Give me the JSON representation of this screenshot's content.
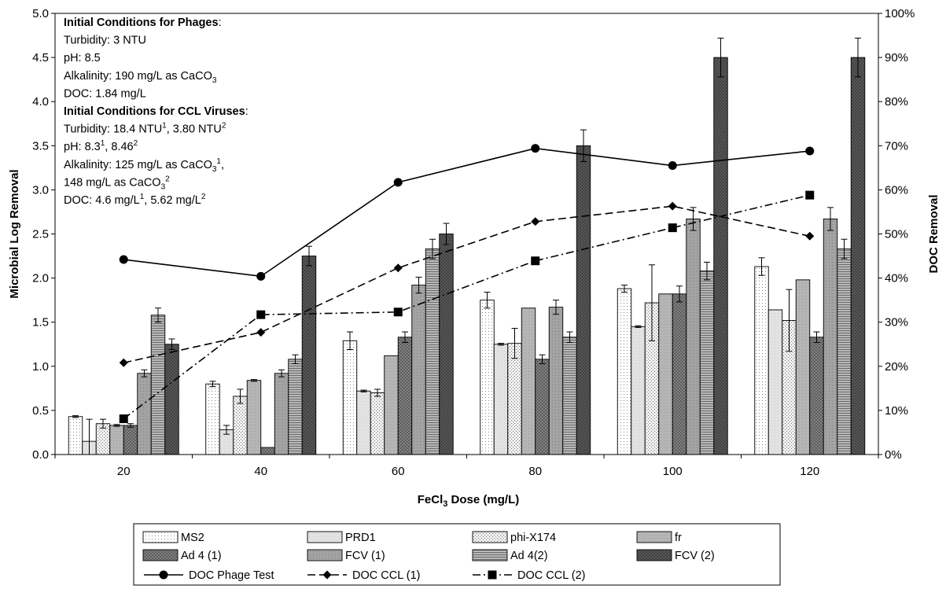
{
  "chart_data": {
    "type": "bar",
    "categories": [
      "20",
      "40",
      "60",
      "80",
      "100",
      "120"
    ],
    "xlabel": "FeCl3 Dose (mg/L)",
    "ylabel": "Microbial Log Removal",
    "y2label": "DOC Removal",
    "ylim": [
      0,
      5
    ],
    "y2lim": [
      0,
      100
    ],
    "y_ticks": [
      "0.0",
      "0.5",
      "1.0",
      "1.5",
      "2.0",
      "2.5",
      "3.0",
      "3.5",
      "4.0",
      "4.5",
      "5.0"
    ],
    "y2_ticks": [
      "0%",
      "10%",
      "20%",
      "30%",
      "40%",
      "50%",
      "60%",
      "70%",
      "80%",
      "90%",
      "100%"
    ],
    "series": [
      {
        "name": "MS2",
        "values": [
          0.43,
          0.8,
          1.29,
          1.75,
          1.88,
          2.13
        ],
        "errors": [
          0.01,
          0.03,
          0.1,
          0.09,
          0.04,
          0.1
        ],
        "fill": "dots-fine"
      },
      {
        "name": "PRD1",
        "values": [
          0.15,
          0.28,
          0.72,
          1.25,
          1.45,
          1.64
        ],
        "errors": [
          0.25,
          0.05,
          0.01,
          0.01,
          0.01,
          0.0
        ],
        "fill": "light"
      },
      {
        "name": "phi-X174",
        "values": [
          0.35,
          0.66,
          0.7,
          1.26,
          1.72,
          1.52
        ],
        "errors": [
          0.05,
          0.08,
          0.04,
          0.17,
          0.43,
          0.35
        ],
        "fill": "dots"
      },
      {
        "name": "fr",
        "values": [
          0.33,
          0.84,
          1.12,
          1.66,
          1.82,
          1.98
        ],
        "errors": [
          0.01,
          0.01,
          0.0,
          0.0,
          0.0,
          0.0
        ],
        "fill": "mid"
      },
      {
        "name": "Ad 4 (1)",
        "values": [
          0.33,
          0.08,
          1.33,
          1.08,
          1.82,
          1.33
        ],
        "errors": [
          0.02,
          0.0,
          0.06,
          0.05,
          0.09,
          0.06
        ],
        "fill": "dark-cross"
      },
      {
        "name": "FCV (1)",
        "values": [
          0.92,
          0.92,
          1.92,
          1.67,
          2.67,
          2.67
        ],
        "errors": [
          0.04,
          0.04,
          0.09,
          0.08,
          0.13,
          0.13
        ],
        "fill": "mid-dark"
      },
      {
        "name": "Ad 4(2)",
        "values": [
          1.58,
          1.08,
          2.33,
          1.33,
          2.08,
          2.33
        ],
        "errors": [
          0.08,
          0.05,
          0.11,
          0.06,
          0.1,
          0.11
        ],
        "fill": "hatch-dark"
      },
      {
        "name": "FCV (2)",
        "values": [
          1.25,
          2.25,
          2.5,
          3.5,
          4.5,
          4.5
        ],
        "errors": [
          0.06,
          0.11,
          0.12,
          0.18,
          0.22,
          0.22
        ],
        "fill": "darkest"
      }
    ],
    "lines": [
      {
        "name": "DOC Phage Test",
        "x": [
          20,
          40,
          60,
          80,
          100,
          120
        ],
        "values": [
          44.2,
          40.4,
          61.7,
          69.4,
          65.5,
          68.8
        ],
        "marker": "circle",
        "dash": "solid"
      },
      {
        "name": "DOC CCL (1)",
        "x": [
          20,
          40,
          60,
          80,
          100,
          120
        ],
        "values": [
          20.8,
          27.7,
          42.3,
          52.8,
          56.3,
          49.5
        ],
        "marker": "diamond",
        "dash": "dash"
      },
      {
        "name": "DOC CCL (2)",
        "x": [
          20,
          40,
          60,
          80,
          100,
          120
        ],
        "values": [
          8.1,
          31.7,
          32.3,
          43.9,
          51.4,
          58.8
        ],
        "marker": "square",
        "dash": "dashdot"
      }
    ],
    "legend_position": "bottom",
    "annotation": {
      "lines": [
        {
          "bold": true,
          "segments": [
            {
              "t": "Initial Conditions for Phages",
              "b": true
            },
            {
              "t": ":"
            }
          ]
        },
        {
          "segments": [
            {
              "t": "Turbidity: 3 NTU"
            }
          ]
        },
        {
          "segments": [
            {
              "t": "pH: 8.5"
            }
          ]
        },
        {
          "segments": [
            {
              "t": "Alkalinity: 190 mg/L as CaCO"
            },
            {
              "t": "3",
              "sub": true
            }
          ]
        },
        {
          "segments": [
            {
              "t": "DOC: 1.84 mg/L"
            }
          ]
        },
        {
          "segments": [
            {
              "t": "Initial Conditions for CCL Viruses",
              "b": true
            },
            {
              "t": ":"
            }
          ]
        },
        {
          "segments": [
            {
              "t": "Turbidity: 18.4 NTU"
            },
            {
              "t": "1",
              "sup": true
            },
            {
              "t": ", 3.80 NTU"
            },
            {
              "t": "2",
              "sup": true
            }
          ]
        },
        {
          "segments": [
            {
              "t": "pH: 8.3"
            },
            {
              "t": "1",
              "sup": true
            },
            {
              "t": ", 8.46"
            },
            {
              "t": "2",
              "sup": true
            }
          ]
        },
        {
          "segments": [
            {
              "t": "Alkalinity: 125 mg/L as CaCO"
            },
            {
              "t": "3",
              "sub": true
            },
            {
              "t": "1",
              "sup": true
            },
            {
              "t": ","
            }
          ]
        },
        {
          "segments": [
            {
              "t": "148 mg/L as CaCO"
            },
            {
              "t": "3",
              "sub": true
            },
            {
              "t": "2",
              "sup": true
            }
          ]
        },
        {
          "segments": [
            {
              "t": "DOC: 4.6 mg/L"
            },
            {
              "t": "1",
              "sup": true
            },
            {
              "t": ", 5.62 mg/L"
            },
            {
              "t": "2",
              "sup": true
            }
          ]
        }
      ]
    }
  }
}
